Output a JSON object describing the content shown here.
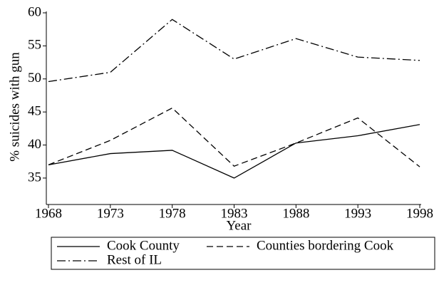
{
  "chart_data": {
    "type": "line",
    "x": [
      1968,
      1973,
      1978,
      1983,
      1988,
      1993,
      1998
    ],
    "series": [
      {
        "name": "Cook County",
        "color": "#000000",
        "style": "solid",
        "values": [
          37.0,
          38.7,
          39.2,
          35.0,
          40.3,
          41.4,
          43.1
        ]
      },
      {
        "name": "Counties bordering Cook",
        "color": "#000000",
        "style": "dashed",
        "values": [
          37.0,
          40.7,
          45.6,
          36.8,
          40.3,
          44.1,
          36.7
        ]
      },
      {
        "name": "Rest of IL",
        "color": "#000000",
        "style": "dashdot",
        "values": [
          49.6,
          51.0,
          59.0,
          53.0,
          56.1,
          53.3,
          52.8
        ]
      }
    ],
    "xlabel": "Year",
    "ylabel": "% suicides with gun",
    "xlim": [
      1968,
      1998
    ],
    "xticks": [
      1968,
      1973,
      1978,
      1983,
      1988,
      1993,
      1998
    ],
    "ylim": [
      31,
      60
    ],
    "yticks": [
      35,
      40,
      45,
      50,
      55,
      60
    ],
    "grid": false,
    "legend": "bottom"
  }
}
